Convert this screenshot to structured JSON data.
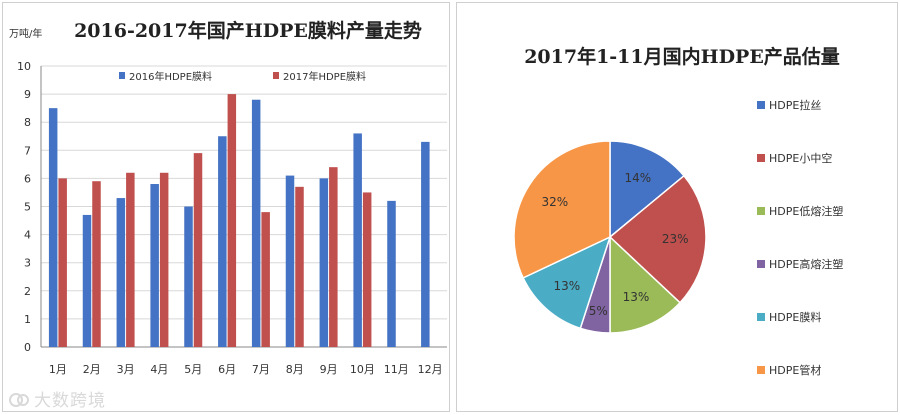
{
  "colors": {
    "blue": "#4472C4",
    "red": "#C0504D",
    "green": "#9BBB59",
    "purple": "#8064A2",
    "teal": "#4BACC6",
    "orange": "#F79646",
    "axis": "#888888",
    "grid": "#d8d8d8"
  },
  "watermark": "大数跨境",
  "chart_data": [
    {
      "type": "bar",
      "title": "2016-2017年国产HDPE膜料产量走势",
      "ylabel": "万吨/年",
      "ylim": [
        0,
        10
      ],
      "yticks": [
        "0",
        "1",
        "2",
        "3",
        "4",
        "5",
        "6",
        "7",
        "8",
        "9",
        "10"
      ],
      "categories": [
        "1月",
        "2月",
        "3月",
        "4月",
        "5月",
        "6月",
        "7月",
        "8月",
        "9月",
        "10月",
        "11月",
        "12月"
      ],
      "legend_position": "top",
      "series": [
        {
          "name": "2016年HDPE膜料",
          "color": "#4472C4",
          "values": [
            8.5,
            4.7,
            5.3,
            5.8,
            5.0,
            7.5,
            8.8,
            6.1,
            6.0,
            7.6,
            5.2,
            7.3
          ]
        },
        {
          "name": "2017年HDPE膜料",
          "color": "#C0504D",
          "values": [
            6.0,
            5.9,
            6.2,
            6.2,
            6.9,
            9.0,
            4.8,
            5.7,
            6.4,
            5.5,
            null,
            null
          ]
        }
      ]
    },
    {
      "type": "pie",
      "title": "2017年1-11月国内HDPE产品估量",
      "legend_position": "right",
      "slices": [
        {
          "label": "HDPE拉丝",
          "value": 14,
          "text": "14%",
          "color": "#4472C4"
        },
        {
          "label": "HDPE小中空",
          "value": 23,
          "text": "23%",
          "color": "#C0504D"
        },
        {
          "label": "HDPE低熔注塑",
          "value": 13,
          "text": "13%",
          "color": "#9BBB59"
        },
        {
          "label": "HDPE高熔注塑",
          "value": 5,
          "text": "5%",
          "color": "#8064A2"
        },
        {
          "label": "HDPE膜料",
          "value": 13,
          "text": "13%",
          "color": "#4BACC6"
        },
        {
          "label": "HDPE管材",
          "value": 32,
          "text": "32%",
          "color": "#F79646"
        }
      ]
    }
  ]
}
